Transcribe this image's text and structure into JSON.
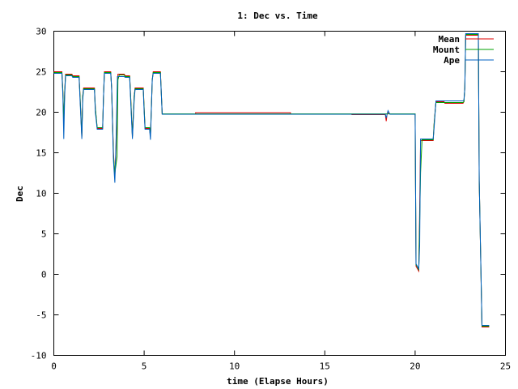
{
  "chart_data": {
    "type": "line",
    "title": "1: Dec vs. Time",
    "xlabel": "time (Elapse Hours)",
    "ylabel": "Dec",
    "xlim": [
      0,
      25
    ],
    "ylim": [
      -10,
      30
    ],
    "xticks": [
      0,
      5,
      10,
      15,
      20,
      25
    ],
    "yticks": [
      30,
      25,
      20,
      15,
      10,
      5,
      0,
      -5,
      -10
    ],
    "grid": false,
    "legend_position": "top-right",
    "series": [
      {
        "name": "Mean",
        "color": "#e00000",
        "points": [
          [
            0.0,
            25.0
          ],
          [
            0.45,
            25.0
          ],
          [
            0.5,
            22.5
          ],
          [
            0.55,
            18.8
          ],
          [
            0.6,
            22.5
          ],
          [
            0.65,
            24.7
          ],
          [
            1.0,
            24.7
          ],
          [
            1.05,
            24.5
          ],
          [
            1.4,
            24.5
          ],
          [
            1.45,
            22.0
          ],
          [
            1.55,
            17.0
          ],
          [
            1.6,
            22.0
          ],
          [
            1.65,
            23.0
          ],
          [
            2.25,
            23.0
          ],
          [
            2.3,
            20.5
          ],
          [
            2.4,
            18.0
          ],
          [
            2.7,
            18.0
          ],
          [
            2.75,
            22.0
          ],
          [
            2.8,
            25.0
          ],
          [
            3.15,
            25.0
          ],
          [
            3.2,
            23.0
          ],
          [
            3.3,
            15.0
          ],
          [
            3.38,
            12.0
          ],
          [
            3.45,
            16.0
          ],
          [
            3.55,
            24.7
          ],
          [
            3.9,
            24.7
          ],
          [
            3.95,
            24.5
          ],
          [
            4.2,
            24.5
          ],
          [
            4.25,
            22.0
          ],
          [
            4.35,
            17.0
          ],
          [
            4.45,
            22.0
          ],
          [
            4.5,
            23.0
          ],
          [
            4.95,
            23.0
          ],
          [
            5.0,
            20.5
          ],
          [
            5.05,
            18.0
          ],
          [
            5.3,
            18.0
          ],
          [
            5.35,
            17.0
          ],
          [
            5.45,
            24.0
          ],
          [
            5.5,
            25.0
          ],
          [
            5.9,
            25.0
          ],
          [
            6.0,
            19.8
          ],
          [
            7.85,
            19.8
          ],
          [
            7.85,
            19.95
          ],
          [
            13.1,
            19.95
          ],
          [
            13.1,
            19.8
          ],
          [
            16.5,
            19.8
          ],
          [
            16.5,
            19.7
          ],
          [
            18.35,
            19.7
          ],
          [
            18.4,
            18.9
          ],
          [
            18.45,
            19.8
          ],
          [
            18.5,
            20.0
          ],
          [
            18.6,
            19.8
          ],
          [
            20.0,
            19.8
          ],
          [
            20.05,
            1.0
          ],
          [
            20.2,
            0.4
          ],
          [
            20.25,
            8.0
          ],
          [
            20.3,
            16.5
          ],
          [
            21.0,
            16.5
          ],
          [
            21.05,
            18.5
          ],
          [
            21.15,
            21.3
          ],
          [
            21.6,
            21.3
          ],
          [
            21.65,
            21.1
          ],
          [
            22.65,
            21.1
          ],
          [
            22.7,
            21.3
          ],
          [
            22.75,
            23.0
          ],
          [
            22.8,
            29.5
          ],
          [
            23.5,
            29.5
          ],
          [
            23.55,
            11.5
          ],
          [
            23.7,
            -6.5
          ],
          [
            24.1,
            -6.5
          ]
        ]
      },
      {
        "name": "Mount",
        "color": "#00a000",
        "points": [
          [
            0.0,
            24.9
          ],
          [
            0.45,
            24.9
          ],
          [
            0.5,
            22.5
          ],
          [
            0.55,
            19.0
          ],
          [
            0.6,
            22.5
          ],
          [
            0.65,
            24.6
          ],
          [
            1.0,
            24.6
          ],
          [
            1.05,
            24.4
          ],
          [
            1.4,
            24.4
          ],
          [
            1.45,
            22.0
          ],
          [
            1.55,
            17.0
          ],
          [
            1.6,
            22.0
          ],
          [
            1.65,
            22.9
          ],
          [
            2.25,
            22.9
          ],
          [
            2.3,
            20.5
          ],
          [
            2.4,
            18.1
          ],
          [
            2.7,
            18.1
          ],
          [
            2.75,
            22.0
          ],
          [
            2.8,
            24.9
          ],
          [
            3.15,
            24.9
          ],
          [
            3.2,
            23.0
          ],
          [
            3.3,
            14.5
          ],
          [
            3.38,
            12.5
          ],
          [
            3.5,
            14.5
          ],
          [
            3.55,
            24.0
          ],
          [
            3.62,
            24.6
          ],
          [
            3.9,
            24.6
          ],
          [
            3.95,
            24.4
          ],
          [
            4.2,
            24.4
          ],
          [
            4.25,
            22.0
          ],
          [
            4.35,
            17.0
          ],
          [
            4.45,
            22.0
          ],
          [
            4.5,
            22.9
          ],
          [
            4.95,
            22.9
          ],
          [
            5.0,
            20.5
          ],
          [
            5.05,
            18.1
          ],
          [
            5.3,
            18.1
          ],
          [
            5.35,
            17.0
          ],
          [
            5.45,
            24.0
          ],
          [
            5.5,
            24.9
          ],
          [
            5.9,
            24.9
          ],
          [
            6.0,
            19.8
          ],
          [
            20.0,
            19.8
          ],
          [
            20.05,
            1.2
          ],
          [
            20.2,
            0.6
          ],
          [
            20.3,
            12.5
          ],
          [
            20.38,
            16.6
          ],
          [
            21.0,
            16.6
          ],
          [
            21.05,
            18.5
          ],
          [
            21.15,
            21.2
          ],
          [
            22.65,
            21.2
          ],
          [
            22.7,
            21.3
          ],
          [
            22.75,
            23.0
          ],
          [
            22.8,
            29.6
          ],
          [
            23.5,
            29.6
          ],
          [
            23.55,
            11.5
          ],
          [
            23.7,
            -6.4
          ],
          [
            24.1,
            -6.4
          ]
        ]
      },
      {
        "name": "Ape",
        "color": "#0060c0",
        "points": [
          [
            0.0,
            24.8
          ],
          [
            0.45,
            24.8
          ],
          [
            0.5,
            22.0
          ],
          [
            0.55,
            16.7
          ],
          [
            0.6,
            22.0
          ],
          [
            0.65,
            24.5
          ],
          [
            1.0,
            24.5
          ],
          [
            1.05,
            24.3
          ],
          [
            1.4,
            24.3
          ],
          [
            1.45,
            21.5
          ],
          [
            1.55,
            16.7
          ],
          [
            1.6,
            21.5
          ],
          [
            1.65,
            22.8
          ],
          [
            2.25,
            22.8
          ],
          [
            2.3,
            20.0
          ],
          [
            2.4,
            17.9
          ],
          [
            2.7,
            17.9
          ],
          [
            2.75,
            22.0
          ],
          [
            2.8,
            24.8
          ],
          [
            3.15,
            24.8
          ],
          [
            3.2,
            23.0
          ],
          [
            3.3,
            14.0
          ],
          [
            3.38,
            11.3
          ],
          [
            3.45,
            17.0
          ],
          [
            3.52,
            24.4
          ],
          [
            3.9,
            24.4
          ],
          [
            3.95,
            24.3
          ],
          [
            4.2,
            24.3
          ],
          [
            4.25,
            21.5
          ],
          [
            4.35,
            16.7
          ],
          [
            4.45,
            21.5
          ],
          [
            4.5,
            22.8
          ],
          [
            4.95,
            22.8
          ],
          [
            5.0,
            20.0
          ],
          [
            5.05,
            17.9
          ],
          [
            5.3,
            17.9
          ],
          [
            5.35,
            16.6
          ],
          [
            5.45,
            24.0
          ],
          [
            5.5,
            24.8
          ],
          [
            5.9,
            24.8
          ],
          [
            6.0,
            19.75
          ],
          [
            18.35,
            19.75
          ],
          [
            18.4,
            19.3
          ],
          [
            18.45,
            19.75
          ],
          [
            18.5,
            20.2
          ],
          [
            18.6,
            19.75
          ],
          [
            20.0,
            19.75
          ],
          [
            20.05,
            1.3
          ],
          [
            20.2,
            0.7
          ],
          [
            20.25,
            3.5
          ],
          [
            20.3,
            16.7
          ],
          [
            21.0,
            16.7
          ],
          [
            21.05,
            18.0
          ],
          [
            21.15,
            21.4
          ],
          [
            22.65,
            21.4
          ],
          [
            22.7,
            21.5
          ],
          [
            22.75,
            23.0
          ],
          [
            22.8,
            29.7
          ],
          [
            23.5,
            29.7
          ],
          [
            23.55,
            11.5
          ],
          [
            23.7,
            -6.3
          ],
          [
            24.1,
            -6.3
          ]
        ]
      }
    ]
  }
}
